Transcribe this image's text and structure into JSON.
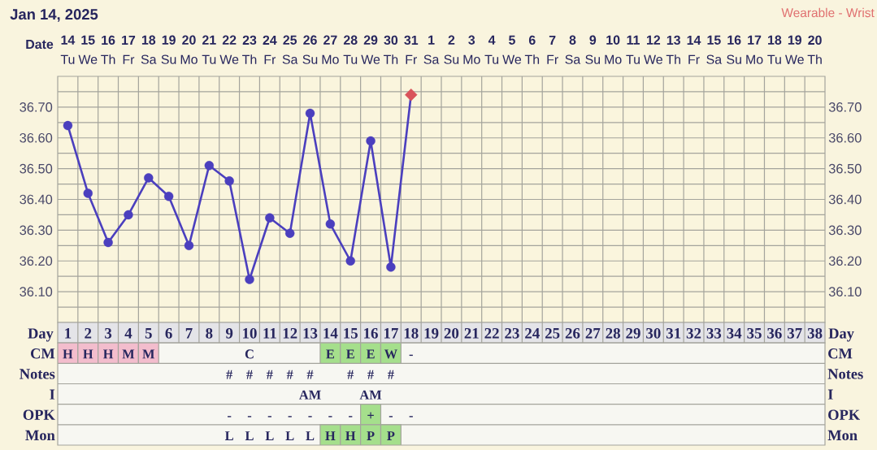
{
  "chart_data": [
    {
      "type": "line",
      "title": "Jan 14, 2025",
      "xlabel": "Date",
      "annotations": [
        "Wearable - Wrist"
      ],
      "categories": [
        "**14** Tu",
        "**15** We",
        "**16** Th",
        "**17** Fr",
        "**18** Sa",
        "**19** Su",
        "**20** Mo",
        "**21** Tu",
        "**22** We",
        "**23** Th",
        "**24** Fr",
        "**25** Sa",
        "**26** Su",
        "**27** Mo",
        "**28** Tu",
        "**29** We",
        "**30** Th",
        "**31** Fr",
        "**1** Sa",
        "**2** Su",
        "**3** Mo",
        "**4** Tu",
        "**5** We",
        "**6** Th",
        "**7** Fr",
        "**8** Sa",
        "**9** Su",
        "**10** Mo",
        "**11** Tu",
        "**12** We",
        "**13** Th",
        "**14** Fr",
        "**15** Sa",
        "**16** Su",
        "**17** Mo",
        "**18** Tu",
        "**19** We",
        "**20** Th"
      ],
      "series": [
        {
          "type": "line",
          "color": "#4b3fbe",
          "marker": "circle",
          "values": [
            36.64,
            36.42,
            36.26,
            36.35,
            36.47,
            36.41,
            36.25,
            36.51,
            36.46,
            36.14,
            36.34,
            36.29,
            36.68,
            36.32,
            36.2,
            36.59,
            36.18,
            36.74,
            null,
            null,
            null,
            null,
            null,
            null,
            null,
            null,
            null,
            null,
            null,
            null,
            null,
            null,
            null,
            null,
            null,
            null,
            null,
            null
          ]
        },
        {
          "type": "scatter",
          "color": "#d9535a",
          "marker": "diamond",
          "values": [
            null,
            null,
            null,
            null,
            null,
            null,
            null,
            null,
            null,
            null,
            null,
            null,
            null,
            null,
            null,
            null,
            null,
            36.74,
            null,
            null,
            null,
            null,
            null,
            null,
            null,
            null,
            null,
            null,
            null,
            null,
            null,
            null,
            null,
            null,
            null,
            null,
            null,
            null
          ]
        }
      ],
      "ylim": [
        36.0,
        36.8
      ],
      "yticks": [
        {
          "value": 36.05,
          "label": null
        },
        {
          "value": 36.1,
          "label": "36.10"
        },
        {
          "value": 36.15,
          "label": null
        },
        {
          "value": 36.2,
          "label": "36.20"
        },
        {
          "value": 36.25,
          "label": null
        },
        {
          "value": 36.3,
          "label": "36.30"
        },
        {
          "value": 36.35,
          "label": null
        },
        {
          "value": 36.4,
          "label": "36.40"
        },
        {
          "value": 36.45,
          "label": null
        },
        {
          "value": 36.5,
          "label": "36.50"
        },
        {
          "value": 36.55,
          "label": null
        },
        {
          "value": 36.6,
          "label": "36.60"
        },
        {
          "value": 36.65,
          "label": null
        },
        {
          "value": 36.7,
          "label": "36.70"
        },
        {
          "value": 36.75,
          "label": null
        }
      ],
      "y2lim": [
        36.0,
        36.8
      ],
      "y2ticks": [
        {
          "value": 36.1,
          "label": "36.10"
        },
        {
          "value": 36.2,
          "label": "36.20"
        },
        {
          "value": 36.3,
          "label": "36.30"
        },
        {
          "value": 36.4,
          "label": "36.40"
        },
        {
          "value": 36.5,
          "label": "36.50"
        },
        {
          "value": 36.6,
          "label": "36.60"
        },
        {
          "value": 36.7,
          "label": "36.70"
        }
      ],
      "grid": true
    },
    {
      "type": "heatmap",
      "xlabel": "Day",
      "categories": [
        "1",
        "2",
        "3",
        "4",
        "5",
        "6",
        "7",
        "8",
        "9",
        "10",
        "11",
        "12",
        "13",
        "14",
        "15",
        "16",
        "17",
        "18",
        "19",
        "20",
        "21",
        "22",
        "23",
        "24",
        "25",
        "26",
        "27",
        "28",
        "29",
        "30",
        "31",
        "32",
        "33",
        "34",
        "35",
        "36",
        "37",
        "38"
      ],
      "y_categories": [
        "CM",
        "Notes",
        "I",
        "OPK",
        "Mon"
      ],
      "y2_categories": [
        "CM",
        "Notes",
        "I",
        "OPK",
        "Mon"
      ],
      "cells": [
        [
          null,
          null,
          null,
          null,
          null,
          null,
          null,
          null,
          null,
          null,
          null,
          null,
          null,
          null,
          null,
          null,
          null,
          null,
          null,
          null,
          null,
          null,
          null,
          null,
          null,
          null,
          null,
          null,
          null,
          null,
          null,
          null,
          null,
          null,
          null,
          null,
          null,
          null
        ],
        [
          null,
          null,
          null,
          null,
          null,
          null,
          null,
          null,
          null,
          null,
          null,
          null,
          null,
          null,
          null,
          null,
          null,
          null,
          null,
          null,
          null,
          null,
          null,
          null,
          null,
          null,
          null,
          null,
          null,
          null,
          null,
          null,
          null,
          null,
          null,
          null,
          null,
          null
        ],
        [
          null,
          null,
          null,
          null,
          null,
          null,
          null,
          null,
          null,
          null,
          null,
          null,
          null,
          null,
          null,
          null,
          null,
          null,
          null,
          null,
          null,
          null,
          null,
          null,
          null,
          null,
          null,
          null,
          null,
          null,
          null,
          null,
          null,
          null,
          null,
          null,
          null,
          null
        ],
        [
          null,
          null,
          null,
          null,
          null,
          null,
          null,
          null,
          null,
          null,
          null,
          null,
          null,
          null,
          null,
          null,
          null,
          null,
          null,
          null,
          null,
          null,
          null,
          null,
          null,
          null,
          null,
          null,
          null,
          null,
          null,
          null,
          null,
          null,
          null,
          null,
          null,
          null
        ],
        [
          null,
          null,
          null,
          null,
          null,
          null,
          null,
          null,
          null,
          null,
          null,
          null,
          null,
          null,
          null,
          null,
          null,
          null,
          null,
          null,
          null,
          null,
          null,
          null,
          null,
          null,
          null,
          null,
          null,
          null,
          null,
          null,
          null,
          null,
          null,
          null,
          null,
          null
        ]
      ],
      "cell_labels": [
        [
          "H",
          "H",
          "H",
          "M",
          "M",
          null,
          null,
          null,
          null,
          "C",
          null,
          null,
          null,
          "E",
          "E",
          "E",
          "W",
          "-",
          null,
          null,
          null,
          null,
          null,
          null,
          null,
          null,
          null,
          null,
          null,
          null,
          null,
          null,
          null,
          null,
          null,
          null,
          null,
          null
        ],
        [
          null,
          null,
          null,
          null,
          null,
          null,
          null,
          null,
          "#",
          "#",
          "#",
          "#",
          "#",
          null,
          "#",
          "#",
          "#",
          null,
          null,
          null,
          null,
          null,
          null,
          null,
          null,
          null,
          null,
          null,
          null,
          null,
          null,
          null,
          null,
          null,
          null,
          null,
          null,
          null
        ],
        [
          null,
          null,
          null,
          null,
          null,
          null,
          null,
          null,
          null,
          null,
          null,
          null,
          "AM",
          null,
          null,
          "AM",
          null,
          null,
          null,
          null,
          null,
          null,
          null,
          null,
          null,
          null,
          null,
          null,
          null,
          null,
          null,
          null,
          null,
          null,
          null,
          null,
          null,
          null
        ],
        [
          null,
          null,
          null,
          null,
          null,
          null,
          null,
          null,
          "-",
          "-",
          "-",
          "-",
          "-",
          "-",
          "-",
          "+",
          "-",
          "-",
          null,
          null,
          null,
          null,
          null,
          null,
          null,
          null,
          null,
          null,
          null,
          null,
          null,
          null,
          null,
          null,
          null,
          null,
          null,
          null
        ],
        [
          null,
          null,
          null,
          null,
          null,
          null,
          null,
          null,
          "L",
          "L",
          "L",
          "L",
          "L",
          "H",
          "H",
          "P",
          "P",
          null,
          null,
          null,
          null,
          null,
          null,
          null,
          null,
          null,
          null,
          null,
          null,
          null,
          null,
          null,
          null,
          null,
          null,
          null,
          null,
          null
        ]
      ],
      "colors": [
        [
          "#f3bdcd",
          "#f3bdcd",
          "#f3bdcd",
          "#f3bdcd",
          "#f3bdcd",
          null,
          null,
          null,
          null,
          null,
          null,
          null,
          null,
          "#a5df8c",
          "#a5df8c",
          "#a5df8c",
          "#a5df8c",
          null,
          null,
          null,
          null,
          null,
          null,
          null,
          null,
          null,
          null,
          null,
          null,
          null,
          null,
          null,
          null,
          null,
          null,
          null,
          null,
          null
        ],
        [
          null,
          null,
          null,
          null,
          null,
          null,
          null,
          null,
          null,
          null,
          null,
          null,
          null,
          null,
          null,
          null,
          null,
          null,
          null,
          null,
          null,
          null,
          null,
          null,
          null,
          null,
          null,
          null,
          null,
          null,
          null,
          null,
          null,
          null,
          null,
          null,
          null,
          null
        ],
        [
          null,
          null,
          null,
          null,
          null,
          null,
          null,
          null,
          null,
          null,
          null,
          null,
          null,
          null,
          null,
          null,
          null,
          null,
          null,
          null,
          null,
          null,
          null,
          null,
          null,
          null,
          null,
          null,
          null,
          null,
          null,
          null,
          null,
          null,
          null,
          null,
          null,
          null
        ],
        [
          null,
          null,
          null,
          null,
          null,
          null,
          null,
          null,
          null,
          null,
          null,
          null,
          null,
          null,
          null,
          "#a5df8c",
          null,
          null,
          null,
          null,
          null,
          null,
          null,
          null,
          null,
          null,
          null,
          null,
          null,
          null,
          null,
          null,
          null,
          null,
          null,
          null,
          null,
          null
        ],
        [
          null,
          null,
          null,
          null,
          null,
          null,
          null,
          null,
          null,
          null,
          null,
          null,
          null,
          "#a5df8c",
          "#a5df8c",
          "#a5df8c",
          "#a5df8c",
          null,
          null,
          null,
          null,
          null,
          null,
          null,
          null,
          null,
          null,
          null,
          null,
          null,
          null,
          null,
          null,
          null,
          null,
          null,
          null,
          null
        ]
      ]
    }
  ]
}
